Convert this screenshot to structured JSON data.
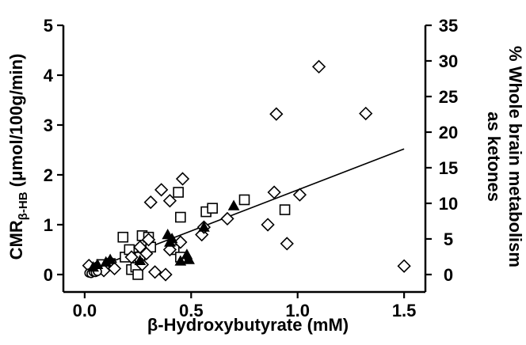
{
  "chart_data": {
    "type": "scatter",
    "xlabel": "β-Hydroxybutyrate (mM)",
    "ylabel_main": "CMR",
    "ylabel_sub": "β-HB",
    "ylabel_units": " (μmol/100g/min)",
    "y2label_line1": "% Whole brain metabolism",
    "y2label_line2": "as ketones",
    "xlim": [
      -0.1,
      1.6
    ],
    "ylim": [
      -0.35,
      5
    ],
    "y2lim": [
      -2.45,
      35
    ],
    "xticks": [
      0.0,
      0.5,
      1.0,
      1.5
    ],
    "xtick_labels": [
      "0.0",
      "0.5",
      "1.0",
      "1.5"
    ],
    "yticks": [
      0,
      1,
      2,
      3,
      4,
      5
    ],
    "ytick_labels": [
      "0",
      "1",
      "2",
      "3",
      "4",
      "5"
    ],
    "y2ticks": [
      0,
      5,
      10,
      15,
      20,
      25,
      30,
      35
    ],
    "y2tick_labels": [
      "0",
      "5",
      "10",
      "15",
      "20",
      "25",
      "30",
      "35"
    ],
    "grid": false,
    "series": [
      {
        "marker": "diamond-open",
        "points": [
          [
            0.02,
            0.18
          ],
          [
            0.05,
            0.12
          ],
          [
            0.09,
            0.08
          ],
          [
            0.12,
            0.25
          ],
          [
            0.14,
            0.12
          ],
          [
            0.22,
            0.35
          ],
          [
            0.26,
            0.55
          ],
          [
            0.27,
            0.2
          ],
          [
            0.29,
            0.42
          ],
          [
            0.3,
            0.7
          ],
          [
            0.31,
            1.45
          ],
          [
            0.33,
            0.05
          ],
          [
            0.36,
            1.7
          ],
          [
            0.38,
            0.0
          ],
          [
            0.4,
            1.48
          ],
          [
            0.4,
            0.5
          ],
          [
            0.45,
            0.65
          ],
          [
            0.46,
            1.92
          ],
          [
            0.55,
            0.8
          ],
          [
            0.56,
            0.95
          ],
          [
            0.67,
            1.12
          ],
          [
            0.86,
            1.0
          ],
          [
            0.89,
            1.65
          ],
          [
            0.9,
            3.22
          ],
          [
            0.95,
            0.62
          ],
          [
            1.01,
            1.6
          ],
          [
            1.1,
            4.17
          ],
          [
            1.32,
            3.23
          ],
          [
            1.5,
            0.17
          ]
        ]
      },
      {
        "marker": "square-open",
        "points": [
          [
            0.08,
            0.2
          ],
          [
            0.12,
            0.22
          ],
          [
            0.18,
            0.75
          ],
          [
            0.19,
            0.35
          ],
          [
            0.21,
            0.5
          ],
          [
            0.22,
            0.1
          ],
          [
            0.24,
            0.15
          ],
          [
            0.25,
            0.33
          ],
          [
            0.25,
            0.0
          ],
          [
            0.26,
            0.35
          ],
          [
            0.27,
            0.78
          ],
          [
            0.3,
            0.75
          ],
          [
            0.31,
            0.55
          ],
          [
            0.42,
            0.5
          ],
          [
            0.44,
            1.65
          ],
          [
            0.45,
            1.15
          ],
          [
            0.45,
            0.35
          ],
          [
            0.57,
            1.26
          ],
          [
            0.6,
            1.33
          ],
          [
            0.75,
            1.5
          ],
          [
            0.94,
            1.3
          ]
        ]
      },
      {
        "marker": "triangle-filled",
        "points": [
          [
            0.04,
            0.15
          ],
          [
            0.06,
            0.2
          ],
          [
            0.1,
            0.25
          ],
          [
            0.12,
            0.3
          ],
          [
            0.26,
            0.28
          ],
          [
            0.39,
            0.8
          ],
          [
            0.4,
            0.65
          ],
          [
            0.41,
            0.72
          ],
          [
            0.45,
            0.27
          ],
          [
            0.48,
            0.4
          ],
          [
            0.49,
            0.3
          ],
          [
            0.56,
            0.95
          ],
          [
            0.7,
            1.38
          ]
        ]
      },
      {
        "marker": "circle-open",
        "points": [
          [
            0.02,
            0.03
          ],
          [
            0.03,
            0.02
          ],
          [
            0.04,
            0.05
          ],
          [
            0.05,
            0.04
          ],
          [
            0.06,
            0.06
          ]
        ]
      }
    ],
    "fit_line": {
      "x": [
        0.0,
        1.5
      ],
      "y": [
        0.05,
        2.52
      ]
    }
  }
}
